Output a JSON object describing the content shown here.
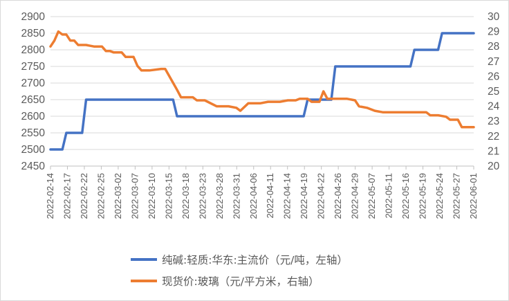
{
  "chart_data": {
    "type": "line",
    "title": "",
    "grid": true,
    "legend_position": "bottom",
    "y_left": {
      "range": [
        2450,
        2900
      ],
      "ticks": [
        2450,
        2500,
        2550,
        2600,
        2650,
        2700,
        2750,
        2800,
        2850,
        2900
      ],
      "tick_labels": [
        "2450",
        "2500",
        "2550",
        "2600",
        "2650",
        "2700",
        "2750",
        "2800",
        "2850",
        "2900"
      ]
    },
    "y_right": {
      "range": [
        20,
        30
      ],
      "ticks": [
        20,
        21,
        22,
        23,
        24,
        25,
        26,
        27,
        28,
        29,
        30
      ],
      "tick_labels": [
        "20",
        "21",
        "22",
        "23",
        "24",
        "25",
        "26",
        "27",
        "28",
        "29",
        "30"
      ]
    },
    "x_range": [
      "2022-02-14",
      "2022-06-01"
    ],
    "x_tick_labels": [
      "2022-02-14",
      "2022-02-17",
      "2022-02-22",
      "2022-02-25",
      "2022-03-02",
      "2022-03-07",
      "2022-03-10",
      "2022-03-15",
      "2022-03-18",
      "2022-03-23",
      "2022-03-28",
      "2022-03-31",
      "2022-04-06",
      "2022-04-11",
      "2022-04-14",
      "2022-04-19",
      "2022-04-22",
      "2022-04-26",
      "2022-04-29",
      "2022-05-07",
      "2022-05-11",
      "2022-05-16",
      "2022-05-19",
      "2022-05-24",
      "2022-05-27",
      "2022-06-01"
    ],
    "series": [
      {
        "name": "纯碱:轻质:华东:主流价（元/吨，左轴）",
        "axis": "left",
        "color": "#4472C4",
        "step": true,
        "points": [
          {
            "x": "2022-02-14",
            "y": 2500
          },
          {
            "x": "2022-02-18",
            "y": 2550
          },
          {
            "x": "2022-02-23",
            "y": 2650
          },
          {
            "x": "2022-03-18",
            "y": 2600
          },
          {
            "x": "2022-04-20",
            "y": 2650
          },
          {
            "x": "2022-04-27",
            "y": 2750
          },
          {
            "x": "2022-05-17",
            "y": 2800
          },
          {
            "x": "2022-05-24",
            "y": 2850
          },
          {
            "x": "2022-06-01",
            "y": 2850
          }
        ]
      },
      {
        "name": "现货价:玻璃（元/平方米，右轴）",
        "axis": "right",
        "color": "#ED7D31",
        "step": false,
        "points": [
          {
            "x": "2022-02-14",
            "y": 28.0
          },
          {
            "x": "2022-02-15",
            "y": 28.4
          },
          {
            "x": "2022-02-16",
            "y": 29.0
          },
          {
            "x": "2022-02-17",
            "y": 28.8
          },
          {
            "x": "2022-02-18",
            "y": 28.8
          },
          {
            "x": "2022-02-19",
            "y": 28.4
          },
          {
            "x": "2022-02-20",
            "y": 28.4
          },
          {
            "x": "2022-02-21",
            "y": 28.1
          },
          {
            "x": "2022-02-23",
            "y": 28.1
          },
          {
            "x": "2022-02-25",
            "y": 28.0
          },
          {
            "x": "2022-02-27",
            "y": 28.0
          },
          {
            "x": "2022-02-28",
            "y": 27.7
          },
          {
            "x": "2022-03-01",
            "y": 27.7
          },
          {
            "x": "2022-03-02",
            "y": 27.6
          },
          {
            "x": "2022-03-04",
            "y": 27.6
          },
          {
            "x": "2022-03-05",
            "y": 27.3
          },
          {
            "x": "2022-03-07",
            "y": 27.3
          },
          {
            "x": "2022-03-08",
            "y": 26.7
          },
          {
            "x": "2022-03-09",
            "y": 26.4
          },
          {
            "x": "2022-03-11",
            "y": 26.4
          },
          {
            "x": "2022-03-14",
            "y": 26.5
          },
          {
            "x": "2022-03-15",
            "y": 26.5
          },
          {
            "x": "2022-03-18",
            "y": 25.1
          },
          {
            "x": "2022-03-19",
            "y": 24.6
          },
          {
            "x": "2022-03-22",
            "y": 24.6
          },
          {
            "x": "2022-03-23",
            "y": 24.4
          },
          {
            "x": "2022-03-25",
            "y": 24.4
          },
          {
            "x": "2022-03-28",
            "y": 24.0
          },
          {
            "x": "2022-03-31",
            "y": 24.0
          },
          {
            "x": "2022-04-02",
            "y": 23.9
          },
          {
            "x": "2022-04-03",
            "y": 23.7
          },
          {
            "x": "2022-04-05",
            "y": 24.2
          },
          {
            "x": "2022-04-08",
            "y": 24.2
          },
          {
            "x": "2022-04-10",
            "y": 24.3
          },
          {
            "x": "2022-04-13",
            "y": 24.3
          },
          {
            "x": "2022-04-15",
            "y": 24.4
          },
          {
            "x": "2022-04-17",
            "y": 24.4
          },
          {
            "x": "2022-04-18",
            "y": 24.5
          },
          {
            "x": "2022-04-20",
            "y": 24.5
          },
          {
            "x": "2022-04-21",
            "y": 24.3
          },
          {
            "x": "2022-04-23",
            "y": 24.3
          },
          {
            "x": "2022-04-24",
            "y": 25.0
          },
          {
            "x": "2022-04-25",
            "y": 24.5
          },
          {
            "x": "2022-04-27",
            "y": 24.5
          },
          {
            "x": "2022-04-30",
            "y": 24.5
          },
          {
            "x": "2022-05-02",
            "y": 24.4
          },
          {
            "x": "2022-05-03",
            "y": 24.0
          },
          {
            "x": "2022-05-05",
            "y": 23.9
          },
          {
            "x": "2022-05-07",
            "y": 23.7
          },
          {
            "x": "2022-05-09",
            "y": 23.6
          },
          {
            "x": "2022-05-12",
            "y": 23.6
          },
          {
            "x": "2022-05-15",
            "y": 23.6
          },
          {
            "x": "2022-05-18",
            "y": 23.6
          },
          {
            "x": "2022-05-20",
            "y": 23.6
          },
          {
            "x": "2022-05-21",
            "y": 23.4
          },
          {
            "x": "2022-05-23",
            "y": 23.4
          },
          {
            "x": "2022-05-25",
            "y": 23.3
          },
          {
            "x": "2022-05-26",
            "y": 23.1
          },
          {
            "x": "2022-05-28",
            "y": 23.1
          },
          {
            "x": "2022-05-29",
            "y": 22.6
          },
          {
            "x": "2022-06-01",
            "y": 22.6
          }
        ]
      }
    ]
  }
}
